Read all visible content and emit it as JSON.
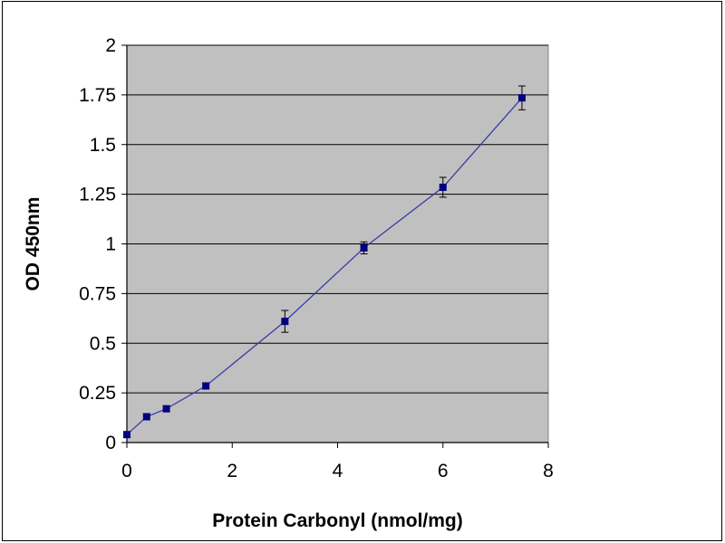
{
  "chart_data": {
    "type": "scatter",
    "title": "",
    "xlabel": "Protein Carbonyl (nmol/mg)",
    "ylabel": "OD 450nm",
    "xlim": [
      0,
      8
    ],
    "ylim": [
      0,
      2
    ],
    "xticks": [
      "0",
      "2",
      "4",
      "6",
      "8"
    ],
    "yticks": [
      "0",
      "0.25",
      "0.5",
      "0.75",
      "1",
      "1.25",
      "1.5",
      "1.75",
      "2"
    ],
    "grid": "horizontal",
    "plot_background": "#c0c0c0",
    "series_color": "#000080",
    "line_color": "#3a3aa8",
    "series": [
      {
        "x": [
          0,
          0.375,
          0.75,
          1.5,
          3,
          4.5,
          6,
          7.5
        ],
        "y": [
          0.04,
          0.13,
          0.17,
          0.285,
          0.61,
          0.98,
          1.285,
          1.735
        ],
        "error": [
          0.01,
          0.015,
          0.015,
          0.015,
          0.055,
          0.03,
          0.05,
          0.06
        ]
      }
    ]
  }
}
